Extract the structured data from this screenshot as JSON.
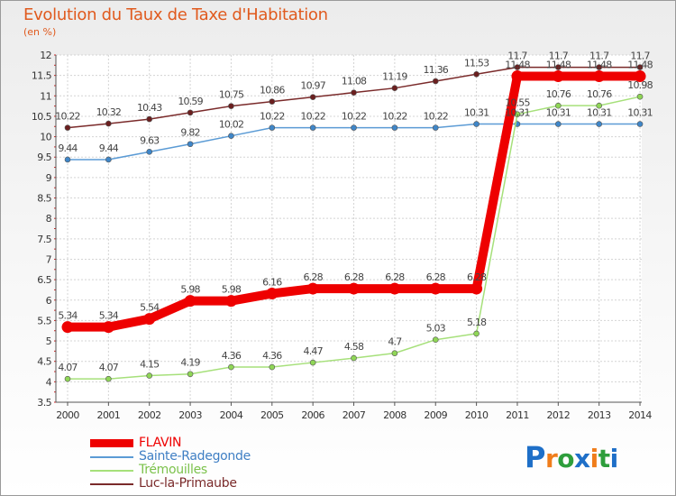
{
  "title": "Evolution du Taux de Taxe d'Habitation",
  "subtitle": "(en %)",
  "brand": {
    "text": "Proxiti",
    "letter_colors": [
      "#1e6fc8",
      "#f07d1b",
      "#2e9e3c",
      "#1e6fc8",
      "#f07d1b",
      "#2e9e3c",
      "#1e6fc8"
    ]
  },
  "chart_data": {
    "type": "line",
    "x": [
      "2000",
      "2001",
      "2002",
      "2003",
      "2004",
      "2005",
      "2006",
      "2007",
      "2008",
      "2009",
      "2010",
      "2011",
      "2012",
      "2013",
      "2014"
    ],
    "ylim": [
      3.5,
      12
    ],
    "yticks": [
      "3.5",
      "4",
      "4.5",
      "5",
      "5.5",
      "6",
      "6.5",
      "7",
      "7.5",
      "8",
      "8.5",
      "9",
      "9.5",
      "10",
      "10.5",
      "11",
      "11.5",
      "12"
    ],
    "grid": true,
    "legend_position": "bottom-left",
    "series": [
      {
        "name": "Luc-la-Primaube",
        "color": "#7a2a2a",
        "values": [
          10.22,
          10.32,
          10.43,
          10.59,
          10.75,
          10.86,
          10.97,
          11.08,
          11.19,
          11.36,
          11.53,
          11.7,
          11.7,
          11.7,
          11.7
        ],
        "labels": [
          "10.22",
          "10.32",
          "10.43",
          "10.59",
          "10.75",
          "10.86",
          "10.97",
          "11.08",
          "11.19",
          "11.36",
          "11.53",
          "11.7",
          "11.7",
          "11.7",
          "11.7"
        ]
      },
      {
        "name": "Sainte-Radegonde",
        "color": "#5b9bd5",
        "values": [
          9.44,
          9.44,
          9.63,
          9.82,
          10.02,
          10.22,
          10.22,
          10.22,
          10.22,
          10.22,
          10.31,
          10.31,
          10.31,
          10.31,
          10.31
        ],
        "labels": [
          "9.44",
          "9.44",
          "9.63",
          "9.82",
          "10.02",
          "10.22",
          "10.22",
          "10.22",
          "10.22",
          "10.22",
          "10.31",
          "10.31",
          "10.31",
          "10.31",
          "10.31"
        ]
      },
      {
        "name": "Trémouilles",
        "color": "#a6e07a",
        "values": [
          4.07,
          4.07,
          4.15,
          4.19,
          4.36,
          4.36,
          4.47,
          4.58,
          4.7,
          5.03,
          5.18,
          10.55,
          10.76,
          10.76,
          10.98
        ],
        "labels": [
          "4.07",
          "4.07",
          "4.15",
          "4.19",
          "4.36",
          "4.36",
          "4.47",
          "4.58",
          "4.7",
          "5.03",
          "5.18",
          "10.55",
          "10.76",
          "10.76",
          "10.98"
        ]
      },
      {
        "name": "FLAVIN",
        "color": "#ee0000",
        "values": [
          5.34,
          5.34,
          5.54,
          5.98,
          5.98,
          6.16,
          6.28,
          6.28,
          6.28,
          6.28,
          6.28,
          11.48,
          11.48,
          11.48,
          11.48
        ],
        "labels": [
          "5.34",
          "5.34",
          "5.54",
          "5.98",
          "5.98",
          "6.16",
          "6.28",
          "6.28",
          "6.28",
          "6.28",
          "6.28",
          "11.48",
          "11.48",
          "11.48",
          "11.48"
        ]
      }
    ]
  },
  "legend": [
    {
      "name": "FLAVIN",
      "color": "#ee0000",
      "text_color": "#ee0000"
    },
    {
      "name": "Sainte-Radegonde",
      "color": "#5b9bd5",
      "text_color": "#3f7fc4"
    },
    {
      "name": "Trémouilles",
      "color": "#a6e07a",
      "text_color": "#7cc24c"
    },
    {
      "name": "Luc-la-Primaube",
      "color": "#7a2a2a",
      "text_color": "#7a2a2a"
    }
  ]
}
